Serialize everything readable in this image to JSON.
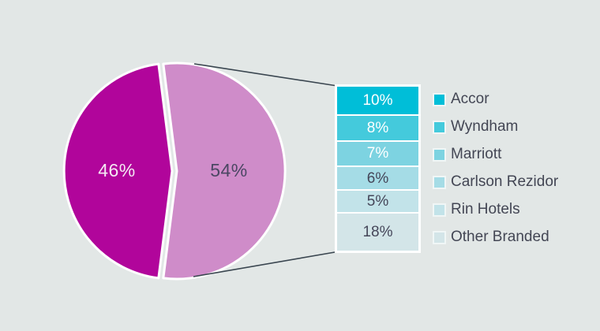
{
  "background": "#e2e7e6",
  "colors": {
    "connector_line": "#3a4650",
    "dark_text": "#454659",
    "bar_border": "#ffffff"
  },
  "chart_data": {
    "type": "pie",
    "title": "",
    "legend_position": "right",
    "pie": {
      "series": [
        {
          "name": "left-slice",
          "label": "46%",
          "value": 46,
          "color": "#b1059b",
          "label_color": "#f4e9f3"
        },
        {
          "name": "right-slice",
          "label": "54%",
          "value": 54,
          "color": "#cf8cc9",
          "label_color": "#4b4763"
        }
      ]
    },
    "breakdown": {
      "of_series": "54%",
      "total": 54,
      "segments": [
        {
          "legend": "Accor",
          "label": "10%",
          "value": 10,
          "color": "#00bed8",
          "label_color": "#ffffff"
        },
        {
          "legend": "Wyndham",
          "label": "8%",
          "value": 8,
          "color": "#44cadc",
          "label_color": "#ffffff"
        },
        {
          "legend": "Marriott",
          "label": "7%",
          "value": 7,
          "color": "#7dd3e1",
          "label_color": "#ffffff"
        },
        {
          "legend": "Carlson Rezidor",
          "label": "6%",
          "value": 6,
          "color": "#a5dce6",
          "label_color": "#454659"
        },
        {
          "legend": "Rin Hotels",
          "label": "5%",
          "value": 5,
          "color": "#c2e3e9",
          "label_color": "#454659"
        },
        {
          "legend": "Other Branded",
          "label": "18%",
          "value": 18,
          "color": "#d3e5e8",
          "label_color": "#454659"
        }
      ]
    }
  },
  "legend": {
    "items": [
      {
        "label": "Accor",
        "color": "#00bed8"
      },
      {
        "label": "Wyndham",
        "color": "#44cadc"
      },
      {
        "label": "Marriott",
        "color": "#7dd3e1"
      },
      {
        "label": "Carlson Rezidor",
        "color": "#a5dce6"
      },
      {
        "label": "Rin Hotels",
        "color": "#c2e3e9"
      },
      {
        "label": "Other Branded",
        "color": "#d3e5e8"
      }
    ]
  }
}
